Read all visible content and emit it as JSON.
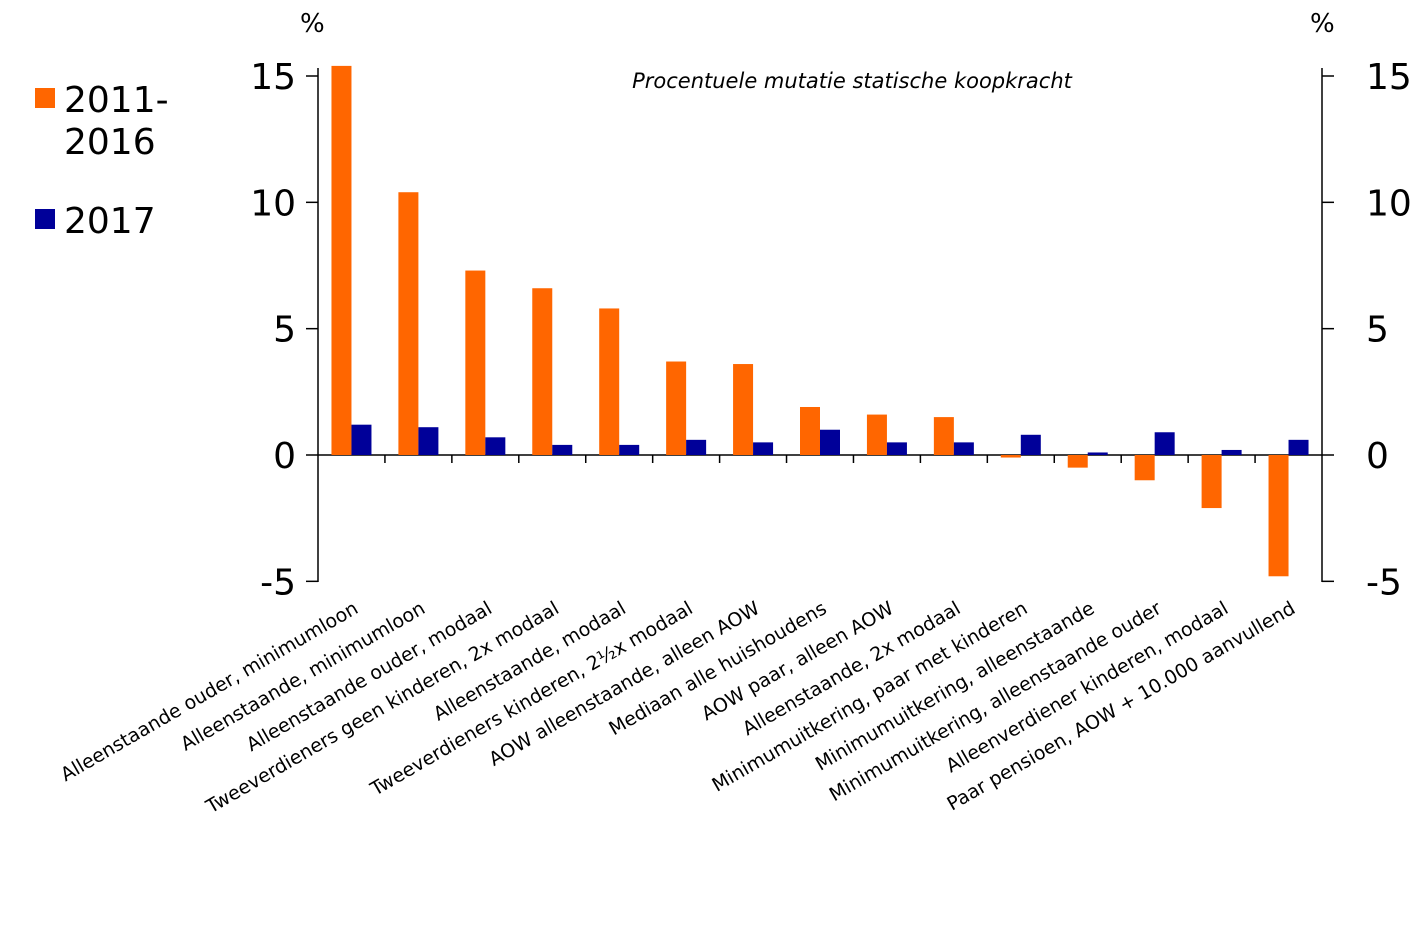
{
  "chart_data": {
    "type": "bar",
    "subtitle": "Procentuele mutatie statische koopkracht",
    "y_unit_left": "%",
    "y_unit_right": "%",
    "ylim": [
      -5,
      15
    ],
    "yticks": [
      -5,
      0,
      5,
      10,
      15
    ],
    "grid": false,
    "legend_position": "left",
    "categories": [
      "Alleenstaande ouder, minimumloon",
      "Alleenstaande, minimumloon",
      "Alleenstaande ouder, modaal",
      "Tweeverdieners geen kinderen, 2x modaal",
      "Alleenstaande, modaal",
      "Tweeverdieners kinderen, 2½x modaal",
      "AOW alleenstaande, alleen AOW",
      "Mediaan alle huishoudens",
      "AOW paar, alleen AOW",
      "Alleenstaande, 2x modaal",
      "Minimumuitkering, paar met kinderen",
      "Minimumuitkering, alleenstaande",
      "Minimumuitkering, alleenstaande ouder",
      "Alleenverdiener kinderen, modaal",
      "Paar pensioen, AOW + 10.000 aanvullend"
    ],
    "series": [
      {
        "name": "2011-2016",
        "legend_lines": [
          "2011-",
          "2016"
        ],
        "color": "#FF6600",
        "values": [
          15.4,
          10.4,
          7.3,
          6.6,
          5.8,
          3.7,
          3.6,
          1.9,
          1.6,
          1.5,
          -0.1,
          -0.5,
          -1.0,
          -2.1,
          -4.8
        ]
      },
      {
        "name": "2017",
        "legend_lines": [
          "2017"
        ],
        "color": "#000099",
        "values": [
          1.2,
          1.1,
          0.7,
          0.4,
          0.4,
          0.6,
          0.5,
          1.0,
          0.5,
          0.5,
          0.8,
          0.1,
          0.9,
          0.2,
          0.6
        ]
      }
    ]
  }
}
